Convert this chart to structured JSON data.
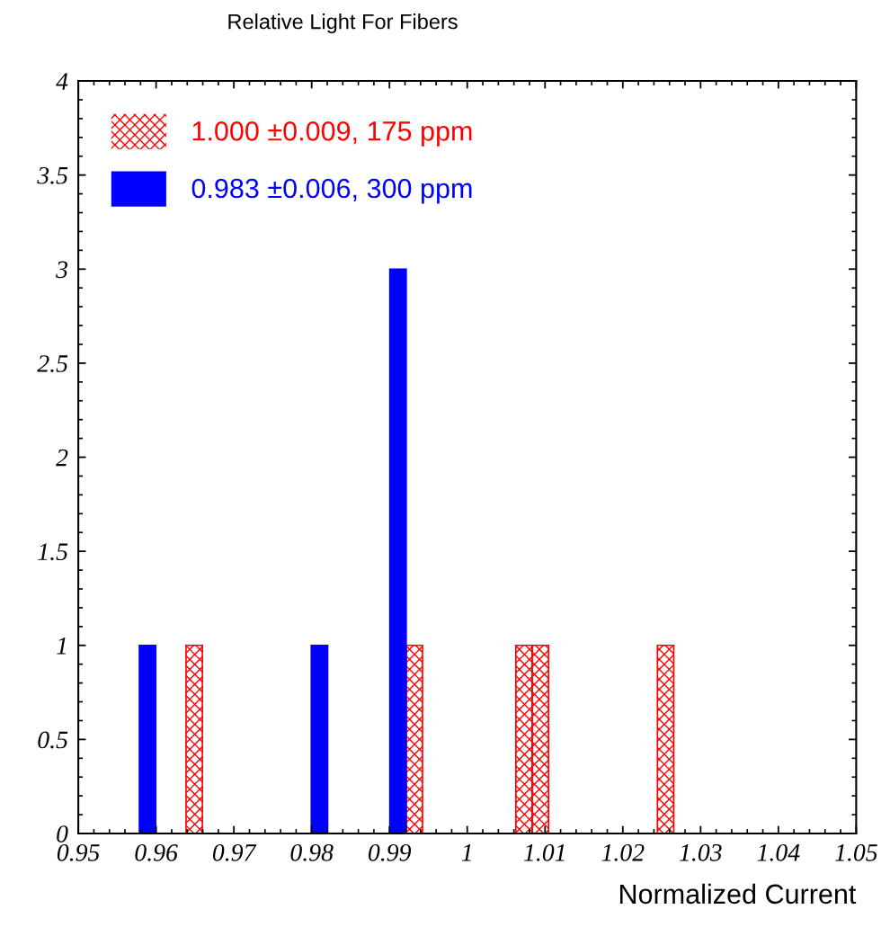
{
  "chart_data": {
    "type": "bar",
    "title": "Relative Light For Fibers",
    "xlabel": "Normalized Current",
    "series": [
      {
        "name": "1.000 ±0.009, 175 ppm",
        "color": "#ff0000",
        "x": [
          0.9649,
          0.9932,
          1.0073,
          1.0094,
          1.0255
        ],
        "values": [
          1,
          1,
          1,
          1,
          1
        ]
      },
      {
        "name": "0.983 ±0.006, 300 ppm",
        "color": "#0000ff",
        "x": [
          0.9589,
          0.981,
          0.9911
        ],
        "values": [
          1,
          1,
          3
        ]
      }
    ],
    "xlim": [
      0.95,
      1.05
    ],
    "xticks": [
      0.95,
      0.96,
      0.97,
      0.98,
      0.99,
      1,
      1.01,
      1.02,
      1.03,
      1.04,
      1.05
    ],
    "ylim": [
      0,
      4
    ],
    "yticks": [
      0,
      0.5,
      1,
      1.5,
      2,
      2.5,
      3,
      3.5,
      4
    ],
    "grid": false,
    "legend": "top left"
  }
}
